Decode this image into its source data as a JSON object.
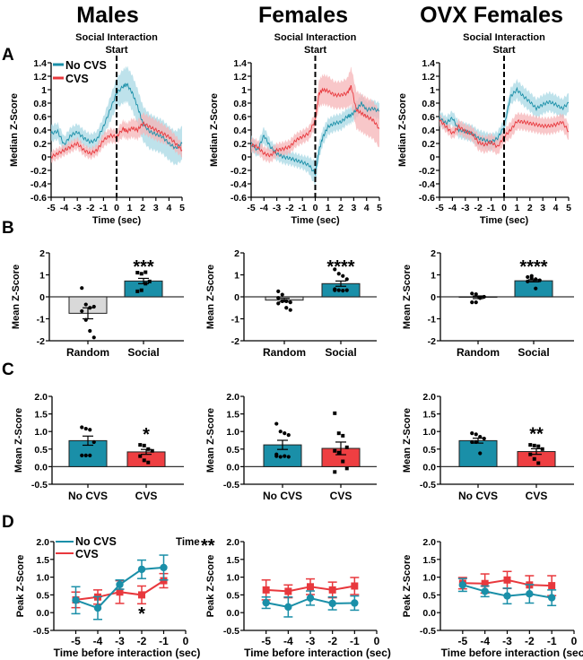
{
  "columns": [
    "Males",
    "Females",
    "OVX Females"
  ],
  "panel_letters": [
    "A",
    "B",
    "C",
    "D"
  ],
  "colors": {
    "no_cvs": "#1a8fa8",
    "no_cvs_fill": "#a8d8e4",
    "cvs": "#e8383d",
    "cvs_fill": "#f5b4b7",
    "random_bar": "#d9d9d9",
    "social_bar": "#1a8fa8",
    "cvs_bar": "#ee3f42",
    "axis": "#000000"
  },
  "legend": {
    "no_cvs": "No CVS",
    "cvs": "CVS"
  },
  "chart_data": [
    {
      "id": "A-males",
      "panel": "A",
      "column": "Males",
      "type": "area",
      "title": "Social Interaction Start",
      "xlabel": "Time (sec)",
      "ylabel": "Median Z-Score",
      "xlim": [
        -5,
        5
      ],
      "ylim": [
        -0.6,
        1.4
      ],
      "xticks": [
        "-5",
        "-4",
        "-3",
        "-2",
        "-1",
        "0",
        "1",
        "2",
        "3",
        "4",
        "5"
      ],
      "yticks": [
        "1.4",
        "1.2",
        "1",
        "0.8",
        "0.6",
        "0.4",
        "0.2",
        "0",
        "-0.2",
        "-0.4",
        "-0.6"
      ],
      "legend_shown": true,
      "legend_position": "top-left",
      "event_line_x": 0,
      "x": [
        -5,
        -4.5,
        -4,
        -3.5,
        -3,
        -2.5,
        -2,
        -1.5,
        -1,
        -0.5,
        0,
        0.5,
        0.8,
        1.2,
        1.6,
        2,
        2.5,
        3,
        3.5,
        4,
        4.5,
        5
      ],
      "series": [
        {
          "name": "No CVS",
          "mean": [
            0.35,
            0.38,
            0.18,
            0.32,
            0.37,
            0.28,
            0.22,
            0.26,
            0.45,
            0.7,
            0.95,
            1.05,
            1.08,
            0.95,
            0.75,
            0.5,
            0.38,
            0.34,
            0.3,
            0.2,
            0.13,
            0.2
          ],
          "sem": [
            0.12,
            0.12,
            0.12,
            0.12,
            0.12,
            0.12,
            0.12,
            0.12,
            0.14,
            0.18,
            0.22,
            0.25,
            0.26,
            0.26,
            0.26,
            0.26,
            0.26,
            0.25,
            0.25,
            0.25,
            0.25,
            0.25
          ]
        },
        {
          "name": "CVS",
          "mean": [
            0.0,
            0.05,
            0.1,
            0.15,
            0.2,
            0.1,
            0.05,
            0.1,
            0.25,
            0.32,
            0.3,
            0.42,
            0.38,
            0.43,
            0.4,
            0.5,
            0.45,
            0.4,
            0.35,
            0.3,
            0.2,
            0.1
          ],
          "sem": [
            0.08,
            0.08,
            0.08,
            0.08,
            0.08,
            0.08,
            0.08,
            0.08,
            0.1,
            0.1,
            0.1,
            0.12,
            0.12,
            0.14,
            0.14,
            0.15,
            0.15,
            0.15,
            0.14,
            0.12,
            0.12,
            0.1
          ]
        }
      ]
    },
    {
      "id": "A-females",
      "panel": "A",
      "column": "Females",
      "type": "area",
      "title": "Social Interaction Start",
      "xlabel": "Time (sec)",
      "ylabel": "Median Z-Score",
      "xlim": [
        -5,
        5
      ],
      "ylim": [
        -0.6,
        1.4
      ],
      "xticks": [
        "-5",
        "-4",
        "-3",
        "-2",
        "-1",
        "0",
        "1",
        "2",
        "3",
        "4",
        "5"
      ],
      "yticks": [
        "1.4",
        "1.2",
        "1",
        "0.8",
        "0.6",
        "0.4",
        "0.2",
        "0",
        "-0.2",
        "-0.4",
        "-0.6"
      ],
      "legend_shown": false,
      "event_line_x": 0,
      "x": [
        -5,
        -4.5,
        -4,
        -3.5,
        -3,
        -2.5,
        -2,
        -1.5,
        -1,
        -0.5,
        0,
        0.3,
        0.6,
        1,
        1.5,
        2,
        2.5,
        2.8,
        3.2,
        3.6,
        4,
        4.5,
        5
      ],
      "series": [
        {
          "name": "No CVS",
          "mean": [
            0.2,
            0.1,
            0.32,
            0.15,
            0.05,
            0.0,
            -0.02,
            -0.05,
            -0.08,
            -0.12,
            -0.25,
            0.1,
            0.3,
            0.45,
            0.5,
            0.52,
            0.6,
            0.62,
            0.7,
            0.8,
            0.7,
            0.72,
            0.68
          ],
          "sem": [
            0.1,
            0.1,
            0.12,
            0.1,
            0.1,
            0.1,
            0.1,
            0.1,
            0.1,
            0.12,
            0.18,
            0.12,
            0.12,
            0.12,
            0.12,
            0.12,
            0.12,
            0.12,
            0.12,
            0.12,
            0.12,
            0.12,
            0.12
          ]
        },
        {
          "name": "CVS",
          "mean": [
            0.18,
            0.15,
            0.05,
            0.02,
            0.1,
            0.12,
            0.15,
            0.25,
            0.3,
            0.35,
            0.55,
            0.95,
            1.0,
            0.98,
            0.92,
            0.92,
            0.95,
            1.05,
            0.7,
            0.65,
            0.6,
            0.55,
            0.42
          ],
          "sem": [
            0.1,
            0.1,
            0.1,
            0.1,
            0.1,
            0.1,
            0.1,
            0.1,
            0.1,
            0.1,
            0.12,
            0.2,
            0.22,
            0.22,
            0.2,
            0.2,
            0.22,
            0.28,
            0.28,
            0.28,
            0.28,
            0.28,
            0.28
          ]
        }
      ]
    },
    {
      "id": "A-ovx",
      "panel": "A",
      "column": "OVX Females",
      "type": "area",
      "title": "Social Interaction Start",
      "xlabel": "Time (sec)",
      "ylabel": "Median Z-Score",
      "xlim": [
        -5,
        5
      ],
      "ylim": [
        -0.6,
        1.4
      ],
      "xticks": [
        "-5",
        "-4",
        "-3",
        "-2",
        "-1",
        "0",
        "1",
        "2",
        "3",
        "4",
        "5"
      ],
      "yticks": [
        "1.4",
        "1.2",
        "1",
        "0.8",
        "0.6",
        "0.4",
        "0.2",
        "0",
        "-0.2",
        "-0.4",
        "-0.6"
      ],
      "legend_shown": false,
      "event_line_x": 0,
      "x": [
        -5,
        -4.5,
        -4,
        -3.5,
        -3,
        -2.5,
        -2,
        -1.5,
        -1,
        -0.5,
        0,
        0.5,
        1,
        1.5,
        2,
        2.5,
        3,
        3.5,
        4,
        4.5,
        5
      ],
      "series": [
        {
          "name": "No CVS",
          "mean": [
            0.58,
            0.5,
            0.58,
            0.4,
            0.38,
            0.35,
            0.28,
            0.25,
            0.22,
            0.28,
            0.45,
            0.9,
            1.0,
            0.9,
            0.82,
            0.72,
            0.78,
            0.82,
            0.78,
            0.72,
            0.8
          ],
          "sem": [
            0.1,
            0.1,
            0.1,
            0.12,
            0.12,
            0.12,
            0.12,
            0.12,
            0.12,
            0.1,
            0.1,
            0.12,
            0.14,
            0.14,
            0.14,
            0.14,
            0.14,
            0.14,
            0.14,
            0.14,
            0.14
          ]
        },
        {
          "name": "CVS",
          "mean": [
            0.55,
            0.45,
            0.35,
            0.45,
            0.38,
            0.35,
            0.22,
            0.18,
            0.22,
            0.15,
            0.3,
            0.4,
            0.53,
            0.52,
            0.5,
            0.48,
            0.46,
            0.46,
            0.48,
            0.52,
            0.38
          ],
          "sem": [
            0.08,
            0.08,
            0.08,
            0.1,
            0.1,
            0.1,
            0.12,
            0.12,
            0.12,
            0.12,
            0.1,
            0.12,
            0.12,
            0.12,
            0.12,
            0.12,
            0.12,
            0.12,
            0.12,
            0.12,
            0.12
          ]
        }
      ]
    },
    {
      "id": "B-males",
      "panel": "B",
      "column": "Males",
      "type": "bar",
      "ylabel": "Mean Z-Score",
      "ylim": [
        -2,
        2
      ],
      "yticks": [
        "2",
        "1",
        "0",
        "-1",
        "-2"
      ],
      "categories": [
        "Random",
        "Social"
      ],
      "values": [
        -0.75,
        0.72
      ],
      "sem": [
        0.25,
        0.12
      ],
      "points": [
        [
          0.4,
          -0.35,
          -0.5,
          -0.45,
          -0.65,
          -1.05,
          -1.55,
          -1.85
        ],
        [
          1.1,
          1.05,
          1.12,
          0.7,
          0.25,
          0.3,
          0.6
        ]
      ],
      "significance": [
        "",
        "***"
      ]
    },
    {
      "id": "B-females",
      "panel": "B",
      "column": "Females",
      "type": "bar",
      "ylabel": "Mean Z-Score",
      "ylim": [
        -2,
        2
      ],
      "yticks": [
        "2",
        "1",
        "0",
        "-1",
        "-2"
      ],
      "categories": [
        "Random",
        "Social"
      ],
      "values": [
        -0.15,
        0.6
      ],
      "sem": [
        0.08,
        0.12
      ],
      "points": [
        [
          0.25,
          0.1,
          -0.2,
          -0.25,
          -0.3,
          -0.2,
          -0.5,
          -0.6,
          -0.05
        ],
        [
          1.25,
          1.05,
          0.95,
          0.8,
          0.35,
          0.3,
          0.28,
          0.3,
          0.3
        ]
      ],
      "significance": [
        "",
        "****"
      ]
    },
    {
      "id": "B-ovx",
      "panel": "B",
      "column": "OVX Females",
      "type": "bar",
      "ylabel": "Mean Z-Score",
      "ylim": [
        -2,
        2
      ],
      "yticks": [
        "2",
        "1",
        "0",
        "-1",
        "-2"
      ],
      "categories": [
        "Random",
        "Social"
      ],
      "values": [
        -0.02,
        0.73
      ],
      "sem": [
        0.06,
        0.05
      ],
      "points": [
        [
          0.15,
          0.12,
          -0.05,
          0.0,
          -0.25,
          -0.25,
          -0.05
        ],
        [
          0.9,
          0.85,
          0.8,
          0.75,
          0.7,
          0.95,
          0.38
        ]
      ],
      "significance": [
        "",
        "****"
      ]
    },
    {
      "id": "C-males",
      "panel": "C",
      "column": "Males",
      "type": "bar",
      "ylabel": "Mean Z-Score",
      "ylim": [
        -0.5,
        2.0
      ],
      "yticks": [
        "2.0",
        "1.5",
        "1.0",
        "0.5",
        "0.0",
        "-0.5"
      ],
      "categories": [
        "No CVS",
        "CVS"
      ],
      "values": [
        0.74,
        0.42
      ],
      "sem": [
        0.13,
        0.07
      ],
      "points": [
        [
          1.12,
          1.08,
          1.05,
          0.7,
          0.32,
          0.32,
          0.32
        ],
        [
          0.62,
          0.6,
          0.5,
          0.45,
          0.3,
          0.18,
          0.12
        ]
      ],
      "significance": [
        "",
        "*"
      ]
    },
    {
      "id": "C-females",
      "panel": "C",
      "column": "Females",
      "type": "bar",
      "ylabel": "Mean Z-Score",
      "ylim": [
        -0.5,
        2.0
      ],
      "yticks": [
        "2.0",
        "1.5",
        "1.0",
        "0.5",
        "0.0",
        "-0.5"
      ],
      "categories": [
        "No CVS",
        "CVS"
      ],
      "values": [
        0.62,
        0.52
      ],
      "sem": [
        0.13,
        0.18
      ],
      "points": [
        [
          1.22,
          1.0,
          0.95,
          0.9,
          0.35,
          0.28,
          0.3,
          0.28,
          0.3
        ],
        [
          1.52,
          0.95,
          0.88,
          0.55,
          0.45,
          0.4,
          0.15,
          -0.05,
          -0.15
        ]
      ],
      "significance": [
        "",
        ""
      ]
    },
    {
      "id": "C-ovx",
      "panel": "C",
      "column": "OVX Females",
      "type": "bar",
      "ylabel": "Mean Z-Score",
      "ylim": [
        -0.5,
        2.0
      ],
      "yticks": [
        "2.0",
        "1.5",
        "1.0",
        "0.5",
        "0.0",
        "-0.5"
      ],
      "categories": [
        "No CVS",
        "CVS"
      ],
      "values": [
        0.74,
        0.43
      ],
      "sem": [
        0.07,
        0.08
      ],
      "points": [
        [
          0.95,
          0.92,
          0.85,
          0.8,
          0.7,
          0.7,
          0.38
        ],
        [
          0.62,
          0.6,
          0.58,
          0.5,
          0.35,
          0.22,
          0.1
        ]
      ],
      "significance": [
        "",
        "**"
      ]
    },
    {
      "id": "D-males",
      "panel": "D",
      "column": "Males",
      "type": "line",
      "xlabel": "Time before interaction (sec)",
      "ylabel": "Peak Z-Score",
      "xlim": [
        -6,
        0
      ],
      "ylim": [
        -0.5,
        2.0
      ],
      "xticks": [
        "-5",
        "-4",
        "-3",
        "-2",
        "-1",
        "0"
      ],
      "yticks": [
        "2.0",
        "1.5",
        "1.0",
        "0.5",
        "0.0",
        "-0.5"
      ],
      "x": [
        -5,
        -4,
        -3,
        -2,
        -1
      ],
      "series": [
        {
          "name": "No CVS",
          "values": [
            0.35,
            0.13,
            0.79,
            1.22,
            1.27
          ],
          "sem": [
            0.38,
            0.32,
            0.13,
            0.26,
            0.35
          ]
        },
        {
          "name": "CVS",
          "values": [
            0.36,
            0.44,
            0.58,
            0.5,
            0.9
          ],
          "sem": [
            0.22,
            0.2,
            0.32,
            0.25,
            0.2
          ]
        }
      ],
      "legend_shown": true,
      "legend_position": "top-left",
      "annotations": [
        {
          "text": "Time",
          "stars": "**",
          "position": "top-right"
        },
        {
          "text": "*",
          "x": -2,
          "below": true
        }
      ]
    },
    {
      "id": "D-females",
      "panel": "D",
      "column": "Females",
      "type": "line",
      "xlabel": "Time before interaction (sec)",
      "ylabel": "Peak Z-Score",
      "xlim": [
        -6,
        0
      ],
      "ylim": [
        -0.5,
        2.0
      ],
      "xticks": [
        "-5",
        "-4",
        "-3",
        "-2",
        "-1",
        "0"
      ],
      "yticks": [
        "2.0",
        "1.5",
        "1.0",
        "0.5",
        "0.0",
        "-0.5"
      ],
      "x": [
        -5,
        -4,
        -3,
        -2,
        -1
      ],
      "series": [
        {
          "name": "No CVS",
          "values": [
            0.28,
            0.16,
            0.41,
            0.26,
            0.27
          ],
          "sem": [
            0.16,
            0.28,
            0.2,
            0.18,
            0.2
          ]
        },
        {
          "name": "CVS",
          "values": [
            0.64,
            0.6,
            0.73,
            0.64,
            0.75
          ],
          "sem": [
            0.28,
            0.18,
            0.22,
            0.22,
            0.24
          ]
        }
      ],
      "legend_shown": false
    },
    {
      "id": "D-ovx",
      "panel": "D",
      "column": "OVX Females",
      "type": "line",
      "xlabel": "Time before interaction (sec)",
      "ylabel": "Peak Z-Score",
      "xlim": [
        -6,
        0
      ],
      "ylim": [
        -0.5,
        2.0
      ],
      "xticks": [
        "-5",
        "-4",
        "-3",
        "-2",
        "-1",
        "0"
      ],
      "yticks": [
        "2.0",
        "1.5",
        "1.0",
        "0.5",
        "0.0",
        "-0.5"
      ],
      "x": [
        -5,
        -4,
        -3,
        -2,
        -1
      ],
      "series": [
        {
          "name": "No CVS",
          "values": [
            0.78,
            0.6,
            0.47,
            0.53,
            0.42
          ],
          "sem": [
            0.18,
            0.15,
            0.22,
            0.26,
            0.22
          ]
        },
        {
          "name": "CVS",
          "values": [
            0.83,
            0.82,
            0.92,
            0.78,
            0.76
          ],
          "sem": [
            0.16,
            0.27,
            0.24,
            0.26,
            0.28
          ]
        }
      ],
      "legend_shown": false
    }
  ]
}
